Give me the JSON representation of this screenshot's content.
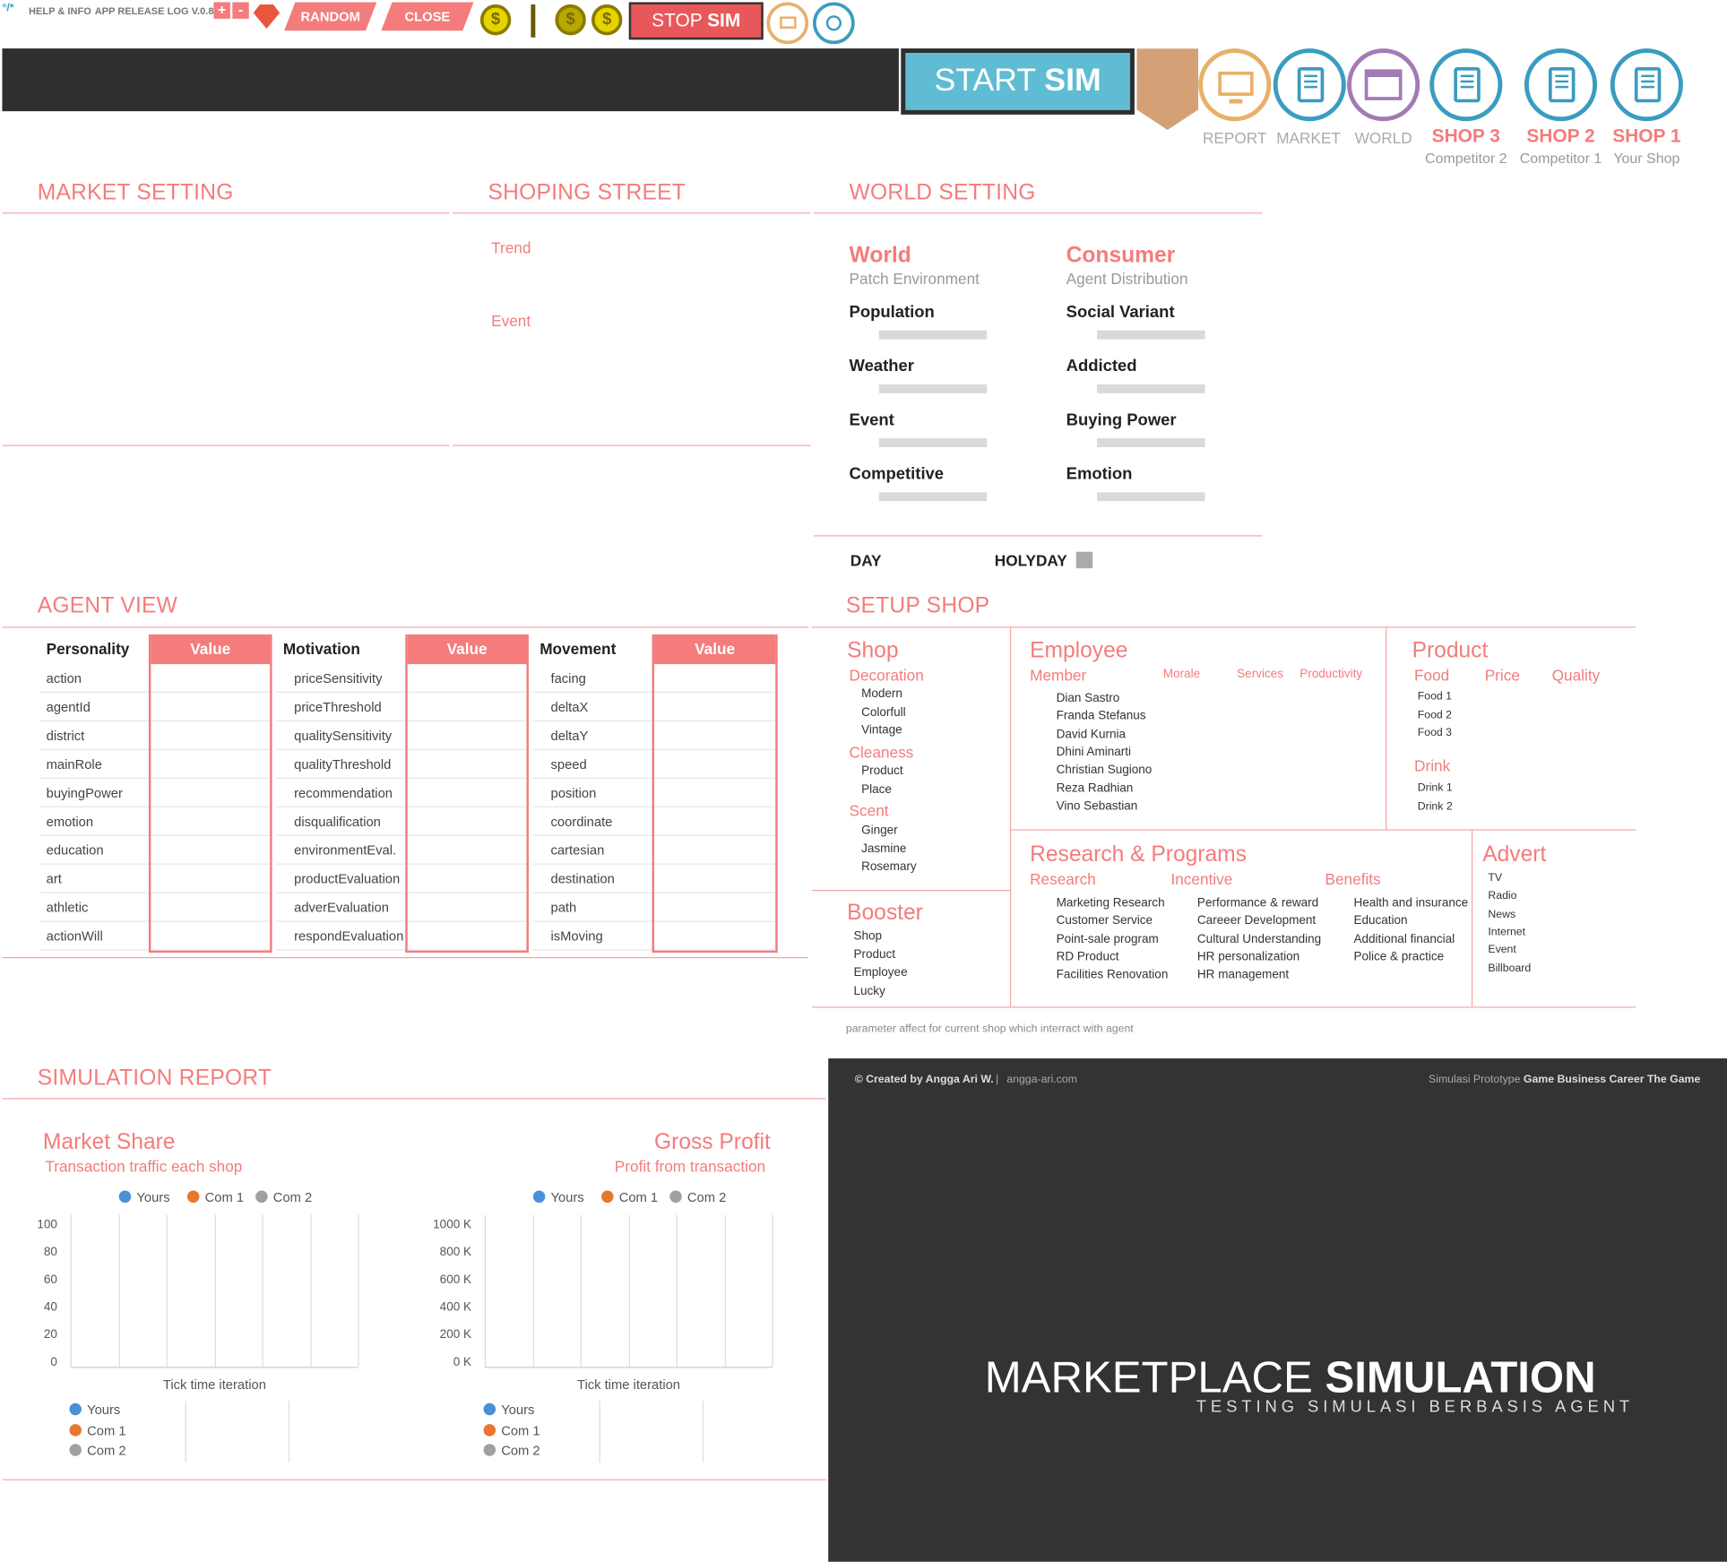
{
  "topbar": {
    "logo": "°/*",
    "help": "HELP & INFO",
    "release": "APP RELEASE LOG V.0.8",
    "plus": "+",
    "minus": "-",
    "random": "RANDOM",
    "close": "CLOSE",
    "coin1": "$",
    "coin2": "$",
    "coin3": "$",
    "stop_a": "STOP ",
    "stop_b": "SIM"
  },
  "start": {
    "a": "START ",
    "b": "SIM"
  },
  "nav": [
    {
      "label": "REPORT",
      "sub": ""
    },
    {
      "label": "MARKET",
      "sub": ""
    },
    {
      "label": "WORLD",
      "sub": ""
    },
    {
      "label": "SHOP 3",
      "sub": "Competitor 2"
    },
    {
      "label": "SHOP 2",
      "sub": "Competitor 1"
    },
    {
      "label": "SHOP 1",
      "sub": "Your Shop"
    }
  ],
  "sections": {
    "market": "MARKET SETTING",
    "street": "SHOPING STREET",
    "world": "WORLD SETTING",
    "agent": "AGENT VIEW",
    "setup": "SETUP SHOP",
    "report": "SIMULATION REPORT"
  },
  "street": {
    "trend": "Trend",
    "event": "Event"
  },
  "world": {
    "world_h": "World",
    "world_s": "Patch Environment",
    "consumer_h": "Consumer",
    "consumer_s": "Agent Distribution",
    "left": [
      "Population",
      "Weather",
      "Event",
      "Competitive"
    ],
    "right": [
      "Social Variant",
      "Addicted",
      "Buying Power",
      "Emotion"
    ],
    "day": "DAY",
    "holyday": "HOLYDAY"
  },
  "agent": {
    "h1": "Personality",
    "h2": "Motivation",
    "h3": "Movement",
    "value": "Value",
    "personality": [
      "action",
      "agentId",
      "district",
      "mainRole",
      "buyingPower",
      "emotion",
      "education",
      "art",
      "athletic",
      "actionWill"
    ],
    "motivation": [
      "priceSensitivity",
      "priceThreshold",
      "qualitySensitivity",
      "qualityThreshold",
      "recommendation",
      "disqualification",
      "environmentEval.",
      "productEvaluation",
      "adverEvaluation",
      "respondEvaluation"
    ],
    "movement": [
      "facing",
      "deltaX",
      "deltaY",
      "speed",
      "position",
      "coordinate",
      "cartesian",
      "destination",
      "path",
      "isMoving"
    ]
  },
  "setup": {
    "shop": "Shop",
    "decoration": "Decoration",
    "deco_items": [
      "Modern",
      "Colorfull",
      "Vintage"
    ],
    "cleaness": "Cleaness",
    "clean_items": [
      "Product",
      "Place"
    ],
    "scent": "Scent",
    "scent_items": [
      "Ginger",
      "Jasmine",
      "Rosemary"
    ],
    "booster": "Booster",
    "booster_items": [
      "Shop",
      "Product",
      "Employee",
      "Lucky"
    ],
    "employee": "Employee",
    "member": "Member",
    "morale": "Morale",
    "services": "Services",
    "productivity": "Productivity",
    "members": [
      "Dian Sastro",
      "Franda Stefanus",
      "David Kurnia",
      "Dhini Aminarti",
      "Christian Sugiono",
      "Reza Radhian",
      "Vino Sebastian"
    ],
    "product": "Product",
    "food": "Food",
    "price": "Price",
    "quality": "Quality",
    "foods": [
      "Food 1",
      "Food 2",
      "Food 3"
    ],
    "drink": "Drink",
    "drinks": [
      "Drink 1",
      "Drink 2"
    ],
    "research_h": "Research & Programs",
    "research": "Research",
    "incentive": "Incentive",
    "benefits": "Benefits",
    "research_items": [
      "Marketing Research",
      "Customer Service",
      "Point-sale program",
      "RD Product",
      "Facilities Renovation"
    ],
    "incentive_items": [
      "Performance & reward",
      "Careeer Development",
      "Cultural Understanding",
      "HR personalization",
      "HR management"
    ],
    "benefit_items": [
      "Health and insurance",
      "Education",
      "Additional financial",
      "Police & practice"
    ],
    "advert": "Advert",
    "advert_items": [
      "TV",
      "Radio",
      "News",
      "Internet",
      "Event",
      "Billboard"
    ],
    "note": "parameter affect for current shop which interract with agent"
  },
  "report": {
    "ms_title": "Market Share",
    "ms_sub": "Transaction traffic each shop",
    "gp_title": "Gross Profit",
    "gp_sub": "Profit from transaction",
    "legend": [
      "Yours",
      "Com 1",
      "Com 2"
    ],
    "xlabel": "Tick time iteration",
    "ms_ticks": [
      "100",
      "80",
      "60",
      "40",
      "20",
      "0"
    ],
    "gp_ticks": [
      "1000 K",
      "800 K",
      "600 K",
      "400 K",
      "200 K",
      "0 K"
    ],
    "colors": [
      "#4a90d9",
      "#e8762d",
      "#a0a0a0"
    ]
  },
  "chart_data": [
    {
      "type": "line",
      "title": "Market Share",
      "xlabel": "Tick time iteration",
      "ylim": [
        0,
        100
      ],
      "series": [
        {
          "name": "Yours",
          "values": []
        },
        {
          "name": "Com 1",
          "values": []
        },
        {
          "name": "Com 2",
          "values": []
        }
      ]
    },
    {
      "type": "line",
      "title": "Gross Profit",
      "xlabel": "Tick time iteration",
      "ylim": [
        0,
        1000
      ],
      "series": [
        {
          "name": "Yours",
          "values": []
        },
        {
          "name": "Com 1",
          "values": []
        },
        {
          "name": "Com 2",
          "values": []
        }
      ]
    }
  ],
  "footer": {
    "credit": "© Created by Angga Ari W.",
    "sep": "|",
    "site": "angga-ari.com",
    "proto": "Simulasi Prototype ",
    "game": "Game Business Career The Game",
    "title_a": "MARKETPLACE ",
    "title_b": "SIMULATION",
    "subtitle": "TESTING SIMULASI BERBASIS AGENT"
  }
}
